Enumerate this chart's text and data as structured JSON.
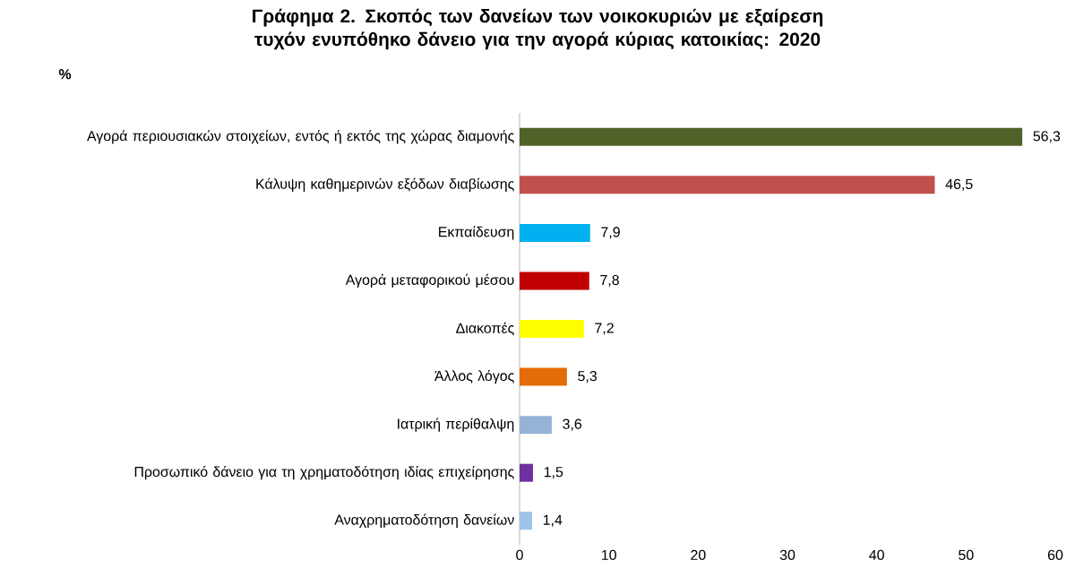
{
  "chart_data": {
    "type": "bar",
    "orientation": "horizontal",
    "title": "Γράφημα 2. Σκοπός των δανείων των νοικοκυριών με εξαίρεση τυχόν ενυπόθηκο δάνειο για την αγορά κύριας κατοικίας: 2020",
    "xlabel": "%",
    "categories": [
      "Αγορά περιουσιακών στοιχείων, εντός ή εκτός της χώρας διαμονής",
      "Κάλυψη καθημερινών εξόδων διαβίωσης",
      "Εκπαίδευση",
      "Αγορά μεταφορικού μέσου",
      "Διακοπές",
      "Άλλος λόγος",
      "Ιατρική περίθαλψη",
      "Προσωπικό δάνειο για τη χρηματοδότηση ιδίας επιχείρησης",
      "Αναχρηματοδότηση δανείων"
    ],
    "values": [
      56.3,
      46.5,
      7.9,
      7.8,
      7.2,
      5.3,
      3.6,
      1.5,
      1.4
    ],
    "value_labels": [
      "56,3",
      "46,5",
      "7,9",
      "7,8",
      "7,2",
      "5,3",
      "3,6",
      "1,5",
      "1,4"
    ],
    "colors": [
      "#4f6228",
      "#c0504d",
      "#00b0f0",
      "#c00000",
      "#ffff00",
      "#e36c09",
      "#95b3d7",
      "#7030a0",
      "#9dc3e6"
    ],
    "xlim": [
      0,
      60
    ],
    "xticks": [
      0,
      10,
      20,
      30,
      40,
      50,
      60
    ]
  }
}
